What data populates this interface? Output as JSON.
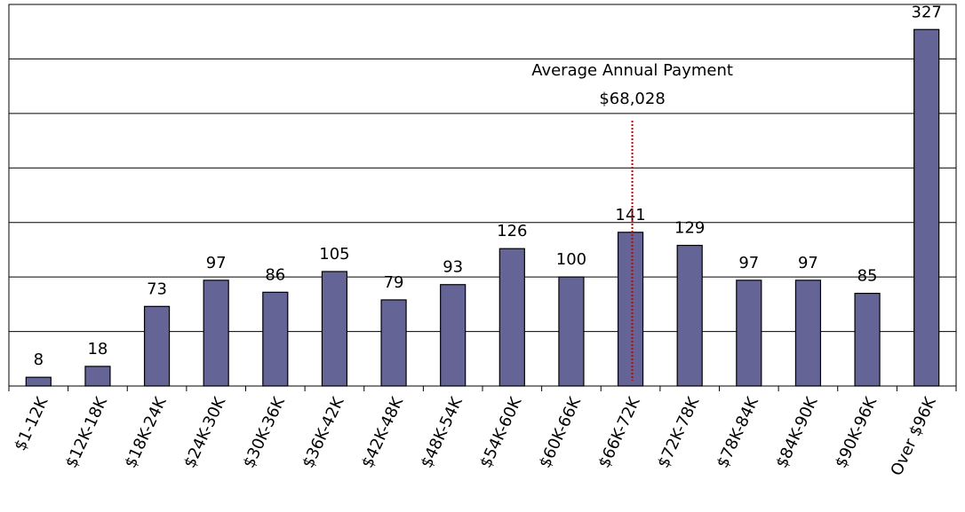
{
  "chart_data": {
    "type": "bar",
    "categories": [
      "$1-12K",
      "$12K-18K",
      "$18K-24K",
      "$24K-30K",
      "$30K-36K",
      "$36K-42K",
      "$42K-48K",
      "$48K-54K",
      "$54K-60K",
      "$60K-66K",
      "$66K-72K",
      "$72K-78K",
      "$78K-84K",
      "$84K-90K",
      "$90K-96K",
      "Over $96K"
    ],
    "values": [
      8,
      18,
      73,
      97,
      86,
      105,
      79,
      93,
      126,
      100,
      141,
      129,
      97,
      97,
      85,
      327
    ],
    "color": "#646496",
    "ylim": [
      0,
      350
    ],
    "yticks": [
      0,
      50,
      100,
      150,
      200,
      250,
      300,
      350
    ],
    "grid": true,
    "annotation": {
      "label": "Average Annual Payment",
      "value": 68028,
      "value_label": "$68,028",
      "color": "#cc0000"
    }
  }
}
